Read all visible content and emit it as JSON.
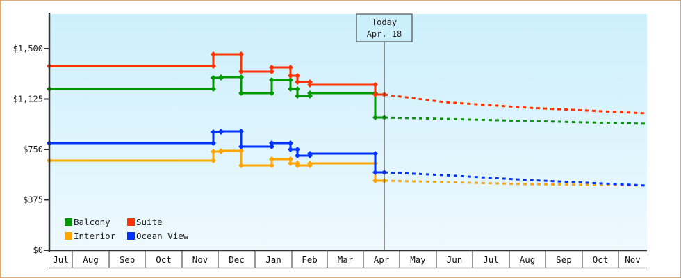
{
  "chart_data": {
    "type": "line",
    "title": "",
    "xlabel": "",
    "ylabel": "",
    "ylim": [
      0,
      1750
    ],
    "y_ticks": [
      "$0",
      "$375",
      "$750",
      "$1,125",
      "$1,500"
    ],
    "y_tick_values": [
      0,
      375,
      750,
      1125,
      1500
    ],
    "x_ticks": [
      "Jul",
      "Aug",
      "Sep",
      "Oct",
      "Nov",
      "Dec",
      "Jan",
      "Feb",
      "Mar",
      "Apr",
      "May",
      "Jun",
      "Jul",
      "Aug",
      "Sep",
      "Oct",
      "Nov"
    ],
    "grid": false,
    "legend_position": "lower-left inside",
    "annotation": {
      "line1": "Today",
      "line2": "Apr. 18"
    },
    "series": [
      {
        "name": "Balcony",
        "color": "#009900",
        "historical": [
          [
            "Jul",
            1200
          ],
          [
            "Nov end",
            1200
          ],
          [
            "Nov end",
            1290
          ],
          [
            "Dec start",
            1290
          ],
          [
            "Dec mid",
            1165
          ],
          [
            "Jan",
            1165
          ],
          [
            "Jan",
            1270
          ],
          [
            "Jan end",
            1270
          ],
          [
            "Feb",
            1190
          ],
          [
            "Feb",
            1145
          ],
          [
            "Apr",
            1145
          ],
          [
            "Apr",
            990
          ]
        ],
        "forecast": [
          [
            "Apr 18",
            990
          ],
          [
            "Nov",
            940
          ]
        ]
      },
      {
        "name": "Suite",
        "color": "#ff3300",
        "historical": [
          [
            "Jul",
            1375
          ],
          [
            "Nov end",
            1375
          ],
          [
            "Nov end",
            1460
          ],
          [
            "Dec mid",
            1460
          ],
          [
            "Dec mid",
            1335
          ],
          [
            "Jan",
            1335
          ],
          [
            "Jan",
            1365
          ],
          [
            "Jan end",
            1365
          ],
          [
            "Feb",
            1300
          ],
          [
            "Feb",
            1250
          ],
          [
            "Apr",
            1230
          ],
          [
            "Apr",
            1160
          ]
        ],
        "forecast": [
          [
            "Apr 18",
            1160
          ],
          [
            "Nov",
            1020
          ]
        ]
      },
      {
        "name": "Interior",
        "color": "#ffa500",
        "historical": [
          [
            "Jul",
            670
          ],
          [
            "Nov end",
            670
          ],
          [
            "Nov end",
            740
          ],
          [
            "Dec mid",
            740
          ],
          [
            "Dec mid",
            630
          ],
          [
            "Jan",
            630
          ],
          [
            "Jan",
            680
          ],
          [
            "Jan end",
            680
          ],
          [
            "Feb",
            640
          ],
          [
            "Apr",
            640
          ],
          [
            "Apr",
            520
          ]
        ],
        "forecast": [
          [
            "Apr 18",
            520
          ],
          [
            "Nov",
            480
          ]
        ]
      },
      {
        "name": "Ocean View",
        "color": "#0033ff",
        "historical": [
          [
            "Jul",
            800
          ],
          [
            "Nov end",
            800
          ],
          [
            "Nov end",
            880
          ],
          [
            "Dec mid",
            880
          ],
          [
            "Dec mid",
            780
          ],
          [
            "Jan",
            780
          ],
          [
            "Jan",
            800
          ],
          [
            "Jan end",
            800
          ],
          [
            "Feb",
            760
          ],
          [
            "Feb",
            725
          ],
          [
            "Apr",
            725
          ],
          [
            "Apr",
            580
          ]
        ],
        "forecast": [
          [
            "Apr 18",
            580
          ],
          [
            "Nov",
            480
          ]
        ]
      }
    ]
  },
  "legend": [
    {
      "label": "Balcony",
      "color": "#009900"
    },
    {
      "label": "Suite",
      "color": "#ff3300"
    },
    {
      "label": "Interior",
      "color": "#ffa500"
    },
    {
      "label": "Ocean View",
      "color": "#0033ff"
    }
  ],
  "today": {
    "line1": "Today",
    "line2": "Apr. 18"
  },
  "months": [
    "Jul",
    "Aug",
    "Sep",
    "Oct",
    "Nov",
    "Dec",
    "Jan",
    "Feb",
    "Mar",
    "Apr",
    "May",
    "Jun",
    "Jul",
    "Aug",
    "Sep",
    "Oct",
    "Nov"
  ],
  "y_ticks": [
    "$0",
    "$375",
    "$750",
    "$1,125",
    "$1,500"
  ]
}
